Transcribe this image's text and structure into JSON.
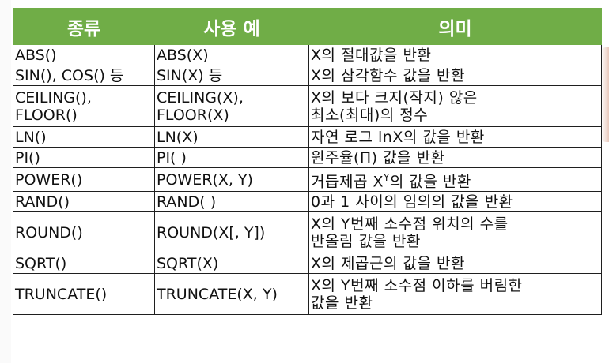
{
  "header": {
    "col_type": "종류",
    "col_example": "사용 예",
    "col_meaning": "의미"
  },
  "rows": [
    {
      "type": "ABS()",
      "example": "ABS(X)",
      "desc": "X의 절대값을 반환"
    },
    {
      "type": "SIN(), COS() 등",
      "example": "SIN(X) 등",
      "desc": "X의 삼각함수 값을 반환"
    },
    {
      "type": "CEILING(),\nFLOOR()",
      "example": "CEILING(X),\nFLOOR(X)",
      "desc": "X의 보다 크지(작지) 않은\n최소(최대)의 정수"
    },
    {
      "type": "LN()",
      "example": "LN(X)",
      "desc": "자연 로그 lnX의 값을 반환"
    },
    {
      "type": "PI()",
      "example": "PI( )",
      "desc": "원주율(Π) 값을 반환"
    },
    {
      "type": "POWER()",
      "example": "POWER(X, Y)",
      "desc_before": "거듭제곱 X",
      "desc_sup": "Y",
      "desc_after": "의 값을 반환"
    },
    {
      "type": "RAND()",
      "example": "RAND( )",
      "desc": "0과 1 사이의 임의의 값을 반환"
    },
    {
      "type": "ROUND()",
      "example": "ROUND(X[, Y])",
      "desc": "X의 Y번째 소수점 위치의 수를\n반올림 값을 반환"
    },
    {
      "type": "SQRT()",
      "example": "SQRT(X)",
      "desc": "X의 제곱근의 값을 반환"
    },
    {
      "type": "TRUNCATE()",
      "example": "TRUNCATE(X, Y)",
      "desc": "X의 Y번째 소수점 이하를 버림한\n값을 반환"
    }
  ]
}
